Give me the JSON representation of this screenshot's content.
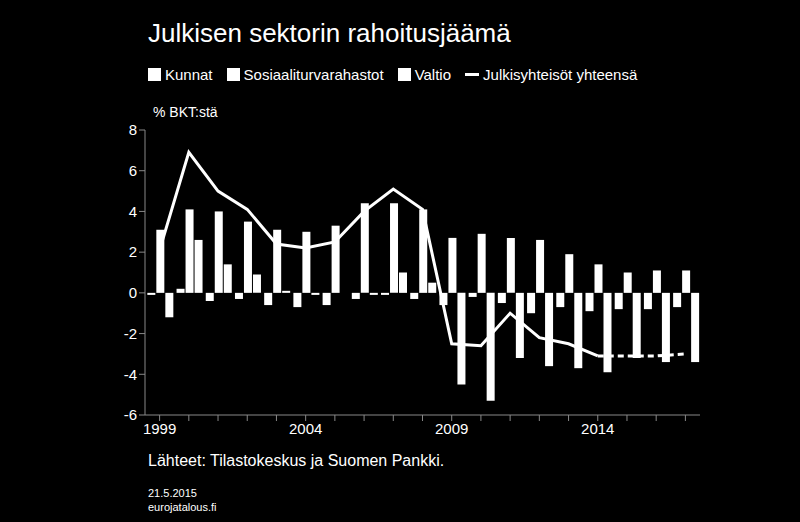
{
  "chart_data": {
    "type": "bar",
    "title": "Julkisen sektorin rahoitusjäämä",
    "ylabel": "% BKT:stä",
    "annotations": [
      "Lähteet: Tilastokeskus ja Suomen Pankki.",
      "21.5.2015",
      "eurojatalous.fi"
    ],
    "categories": [
      "1999",
      null,
      null,
      null,
      null,
      "2004",
      null,
      null,
      null,
      null,
      "2009",
      null,
      null,
      null,
      null,
      "2014",
      null,
      null,
      null
    ],
    "series": [
      {
        "name": "Kunnat",
        "type": "bar",
        "color": "#ffffff",
        "values": [
          -0.1,
          0.2,
          -0.4,
          -0.3,
          -0.6,
          -0.7,
          -0.6,
          -0.3,
          -0.1,
          -0.3,
          -0.6,
          -0.2,
          -0.5,
          -1.0,
          -0.7,
          -0.9,
          -0.8,
          -0.8,
          -0.7
        ]
      },
      {
        "name": "Sosiaaliturvarahastot",
        "type": "bar",
        "color": "#ffffff",
        "values": [
          3.1,
          4.1,
          4.0,
          3.5,
          3.1,
          3.0,
          3.3,
          4.4,
          4.4,
          4.1,
          2.7,
          2.9,
          2.7,
          2.6,
          1.9,
          1.4,
          1.0,
          1.1,
          1.1
        ]
      },
      {
        "name": "Valtio",
        "type": "bar",
        "color": "#ffffff",
        "values": [
          -1.2,
          2.6,
          1.4,
          0.9,
          0.1,
          -0.1,
          0.0,
          -0.1,
          1.0,
          0.5,
          -4.5,
          -5.3,
          -3.2,
          -3.6,
          -3.7,
          -3.9,
          -3.2,
          -3.4,
          -3.4
        ]
      },
      {
        "name": "Julkisyhteisöt yhteensä",
        "type": "line",
        "color": "#ffffff",
        "line_style": "solid",
        "values": [
          2.1,
          6.9,
          5.0,
          4.1,
          2.4,
          2.2,
          2.5,
          4.0,
          5.1,
          4.1,
          -2.5,
          -2.6,
          -1.0,
          -2.2,
          -2.5,
          -3.1,
          null,
          null,
          null
        ]
      },
      {
        "name": "Julkisyhteisöt yhteensä",
        "type": "line",
        "color": "#ffffff",
        "line_style": "dashed",
        "values": [
          null,
          null,
          null,
          null,
          null,
          null,
          null,
          null,
          null,
          null,
          null,
          null,
          null,
          null,
          null,
          -3.1,
          -3.1,
          -3.1,
          -3.0
        ]
      }
    ],
    "ylim": [
      -6,
      8
    ],
    "yticks": [
      -6,
      -4,
      -2,
      0,
      2,
      4,
      6,
      8
    ],
    "legend": "top",
    "grid": false
  }
}
